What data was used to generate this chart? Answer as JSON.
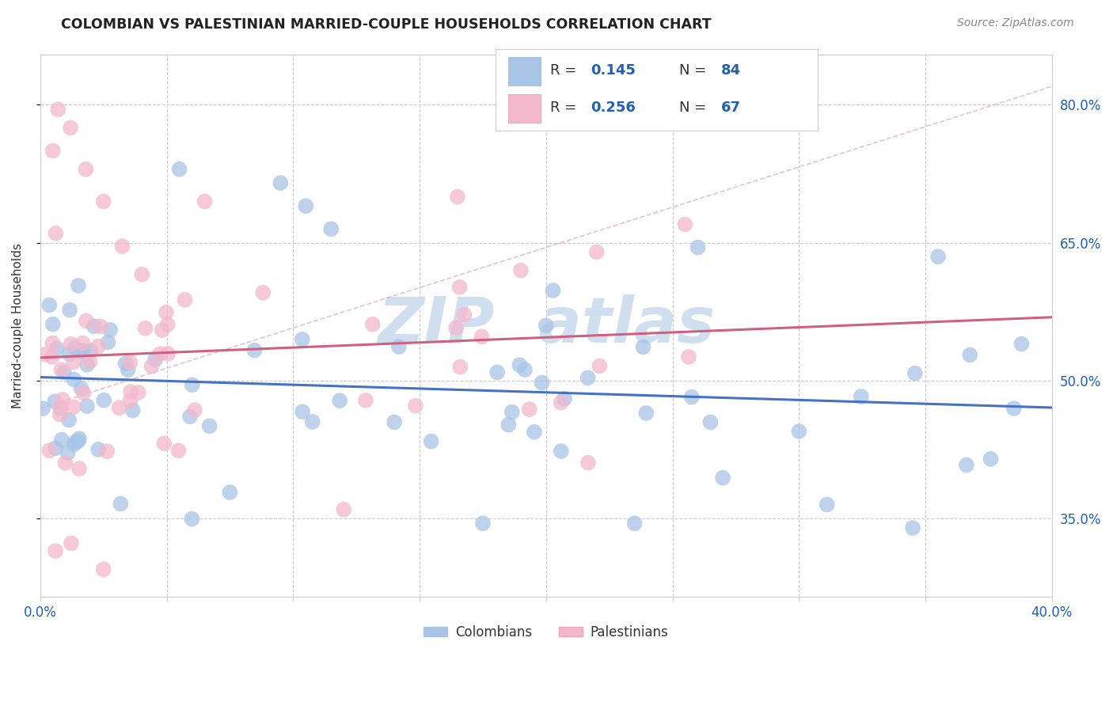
{
  "title": "COLOMBIAN VS PALESTINIAN MARRIED-COUPLE HOUSEHOLDS CORRELATION CHART",
  "source": "Source: ZipAtlas.com",
  "ylabel": "Married-couple Households",
  "ytick_labels": [
    "35.0%",
    "50.0%",
    "65.0%",
    "80.0%"
  ],
  "ytick_values": [
    0.35,
    0.5,
    0.65,
    0.8
  ],
  "xlim": [
    0.0,
    0.4
  ],
  "ylim": [
    0.265,
    0.855
  ],
  "colombian_color": "#a8c4e6",
  "colombian_edge": "none",
  "palestinian_color": "#f4b8cc",
  "palestinian_edge": "none",
  "trend_colombian_color": "#4472c4",
  "trend_palestinian_color": "#d06080",
  "dash_color": "#e8b0b8",
  "watermark_color": "#d0dff0",
  "colombians_label": "Colombians",
  "palestinians_label": "Palestinians",
  "colombian_R": 0.145,
  "colombian_N": 84,
  "palestinian_R": 0.256,
  "palestinian_N": 67,
  "legend_color": "#2060b0",
  "title_fontsize": 12.5,
  "source_fontsize": 10
}
